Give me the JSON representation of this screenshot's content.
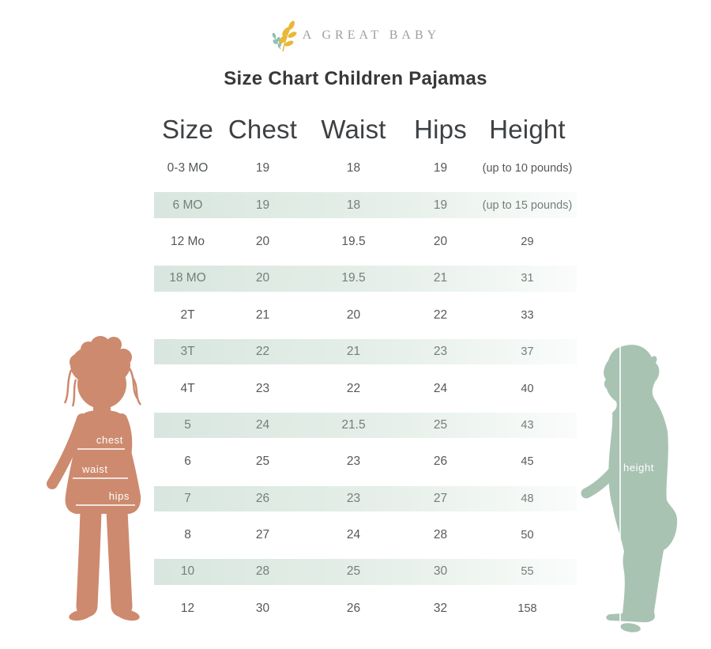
{
  "brand": {
    "name": "A GREAT BABY",
    "icon": "botanical-sprig-icon",
    "text_color": "#9ba09e",
    "sprig_yellow": "#e9b838",
    "sprig_teal": "#8fbfb1"
  },
  "title": "Size Chart Children Pajamas",
  "table": {
    "columns": [
      "Size",
      "Chest",
      "Waist",
      "Hips",
      "Height"
    ],
    "rows": [
      {
        "size": "0-3 MO",
        "chest": "19",
        "waist": "18",
        "hips": "19",
        "height": "(up to 10 pounds)",
        "shaded": false
      },
      {
        "size": "6 MO",
        "chest": "19",
        "waist": "18",
        "hips": "19",
        "height": "(up to 15 pounds)",
        "shaded": true
      },
      {
        "size": "12 Mo",
        "chest": "20",
        "waist": "19.5",
        "hips": "20",
        "height": "29",
        "shaded": false
      },
      {
        "size": "18 MO",
        "chest": "20",
        "waist": "19.5",
        "hips": "21",
        "height": "31",
        "shaded": true
      },
      {
        "size": "2T",
        "chest": "21",
        "waist": "20",
        "hips": "22",
        "height": "33",
        "shaded": false
      },
      {
        "size": "3T",
        "chest": "22",
        "waist": "21",
        "hips": "23",
        "height": "37",
        "shaded": true
      },
      {
        "size": "4T",
        "chest": "23",
        "waist": "22",
        "hips": "24",
        "height": "40",
        "shaded": false
      },
      {
        "size": "5",
        "chest": "24",
        "waist": "21.5",
        "hips": "25",
        "height": "43",
        "shaded": true
      },
      {
        "size": "6",
        "chest": "25",
        "waist": "23",
        "hips": "26",
        "height": "45",
        "shaded": false
      },
      {
        "size": "7",
        "chest": "26",
        "waist": "23",
        "hips": "27",
        "height": "48",
        "shaded": true
      },
      {
        "size": "8",
        "chest": "27",
        "waist": "24",
        "hips": "28",
        "height": "50",
        "shaded": false
      },
      {
        "size": "10",
        "chest": "28",
        "waist": "25",
        "hips": "30",
        "height": "55",
        "shaded": true
      },
      {
        "size": "12",
        "chest": "30",
        "waist": "26",
        "hips": "32",
        "height": "158",
        "shaded": false
      }
    ]
  },
  "figures": {
    "left": {
      "color": "#cd8a6e",
      "labels": {
        "chest": "chest",
        "waist": "waist",
        "hips": "hips"
      }
    },
    "right": {
      "color": "#a9c3b3",
      "label": "height"
    }
  },
  "colors": {
    "title": "#383838",
    "header_text": "#3e4144",
    "row_text": "#54585b",
    "shaded_row_text": "#747f7a",
    "row_shade_start": "#d8e6df",
    "row_shade_mid": "#e6efe9",
    "row_shade_end": "#fafcfb"
  }
}
